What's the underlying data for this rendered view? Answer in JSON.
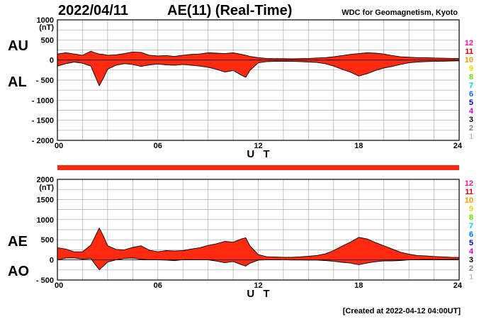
{
  "header": {
    "date": "2022/04/11",
    "title": "AE(11) (Real-Time)",
    "source": "WDC for Geomagnetism, Kyoto"
  },
  "footer": {
    "created": "[Created at 2022-04-12 04:00UT]"
  },
  "colors": {
    "fill": "#ff2a10",
    "grid": "#aaaaaa",
    "frame": "#000000"
  },
  "station_scale": {
    "labels": [
      "12",
      "11",
      "10",
      "9",
      "8",
      "7",
      "6",
      "5",
      "4",
      "3",
      "2",
      "1"
    ],
    "colors": [
      "#ff1493",
      "#d40000",
      "#ff9900",
      "#e6d800",
      "#66dd00",
      "#00cccc",
      "#0070ff",
      "#0000b0",
      "#cc00cc",
      "#000000",
      "#808080",
      "#c0c0c0"
    ]
  },
  "chart_data": [
    {
      "type": "area",
      "panel": "top",
      "series_labels": [
        "AU",
        "AL"
      ],
      "unit": "(nT)",
      "xlabel": "U T",
      "xlim": [
        0,
        24
      ],
      "xticks": [
        "00",
        "06",
        "12",
        "18",
        "24"
      ],
      "ylim": [
        -2000,
        1000
      ],
      "yticks": [
        "1000",
        "500",
        "0",
        "- 500",
        "- 1000",
        "- 1500",
        "- 2000"
      ],
      "grid": true,
      "x": [
        0,
        0.5,
        1,
        1.5,
        2,
        2.25,
        2.5,
        2.75,
        3,
        3.5,
        4,
        4.5,
        5,
        5.5,
        6,
        6.5,
        7,
        7.5,
        8,
        8.5,
        9,
        9.5,
        10,
        10.5,
        11,
        11.25,
        11.5,
        12,
        12.5,
        13,
        13.5,
        14,
        14.5,
        15,
        15.5,
        16,
        16.5,
        17,
        17.5,
        18,
        18.5,
        19,
        19.5,
        20,
        20.5,
        21,
        21.5,
        22,
        22.5,
        23,
        23.5,
        24
      ],
      "series": [
        {
          "name": "AU",
          "values": [
            150,
            180,
            150,
            120,
            220,
            180,
            150,
            140,
            120,
            130,
            160,
            200,
            190,
            120,
            100,
            110,
            90,
            120,
            140,
            150,
            180,
            170,
            160,
            180,
            140,
            120,
            90,
            60,
            40,
            35,
            35,
            30,
            35,
            40,
            50,
            60,
            80,
            110,
            140,
            160,
            180,
            170,
            150,
            110,
            80,
            70,
            60,
            60,
            50,
            45,
            40,
            40
          ]
        },
        {
          "name": "AL",
          "values": [
            -150,
            -90,
            -50,
            -80,
            -150,
            -400,
            -640,
            -450,
            -230,
            -130,
            -90,
            -110,
            -160,
            -120,
            -100,
            -120,
            -130,
            -110,
            -130,
            -150,
            -180,
            -230,
            -300,
            -260,
            -380,
            -430,
            -260,
            -70,
            -40,
            -35,
            -30,
            -35,
            -40,
            -50,
            -60,
            -90,
            -150,
            -230,
            -300,
            -400,
            -340,
            -260,
            -200,
            -160,
            -110,
            -70,
            -50,
            -40,
            -35,
            -30,
            -25,
            -20
          ]
        }
      ]
    },
    {
      "type": "bar",
      "panel": "middle",
      "x": [
        0,
        24
      ],
      "values": [
        1,
        1
      ]
    },
    {
      "type": "area",
      "panel": "bottom",
      "series_labels": [
        "AE",
        "AO"
      ],
      "unit": "(nT)",
      "xlabel": "U T",
      "xlim": [
        0,
        24
      ],
      "xticks": [
        "00",
        "06",
        "12",
        "18",
        "24"
      ],
      "ylim": [
        -500,
        2000
      ],
      "yticks": [
        "2000",
        "1500",
        "1000",
        "500",
        "0",
        "- 500"
      ],
      "grid": true,
      "x": [
        0,
        0.5,
        1,
        1.5,
        2,
        2.25,
        2.5,
        2.75,
        3,
        3.5,
        4,
        4.5,
        5,
        5.5,
        6,
        6.5,
        7,
        7.5,
        8,
        8.5,
        9,
        9.5,
        10,
        10.5,
        11,
        11.25,
        11.5,
        12,
        12.5,
        13,
        13.5,
        14,
        14.5,
        15,
        15.5,
        16,
        16.5,
        17,
        17.5,
        18,
        18.5,
        19,
        19.5,
        20,
        20.5,
        21,
        21.5,
        22,
        22.5,
        23,
        23.5,
        24
      ],
      "series": [
        {
          "name": "AE",
          "values": [
            300,
            270,
            200,
            200,
            370,
            580,
            790,
            590,
            350,
            260,
            250,
            310,
            350,
            240,
            200,
            230,
            220,
            230,
            270,
            300,
            360,
            400,
            460,
            440,
            520,
            550,
            350,
            130,
            80,
            70,
            65,
            65,
            75,
            90,
            110,
            150,
            230,
            340,
            440,
            560,
            520,
            430,
            350,
            270,
            190,
            140,
            110,
            100,
            85,
            75,
            65,
            60
          ]
        },
        {
          "name": "AO",
          "values": [
            0,
            45,
            50,
            20,
            35,
            -110,
            -245,
            -155,
            -55,
            0,
            35,
            45,
            15,
            0,
            0,
            -5,
            -20,
            5,
            5,
            0,
            0,
            -30,
            -70,
            -40,
            -120,
            -155,
            -85,
            -5,
            0,
            0,
            3,
            -3,
            -3,
            -5,
            -5,
            -15,
            -35,
            -60,
            -80,
            -120,
            -80,
            -45,
            -25,
            -25,
            -15,
            0,
            5,
            10,
            8,
            8,
            8,
            10
          ]
        }
      ]
    }
  ]
}
